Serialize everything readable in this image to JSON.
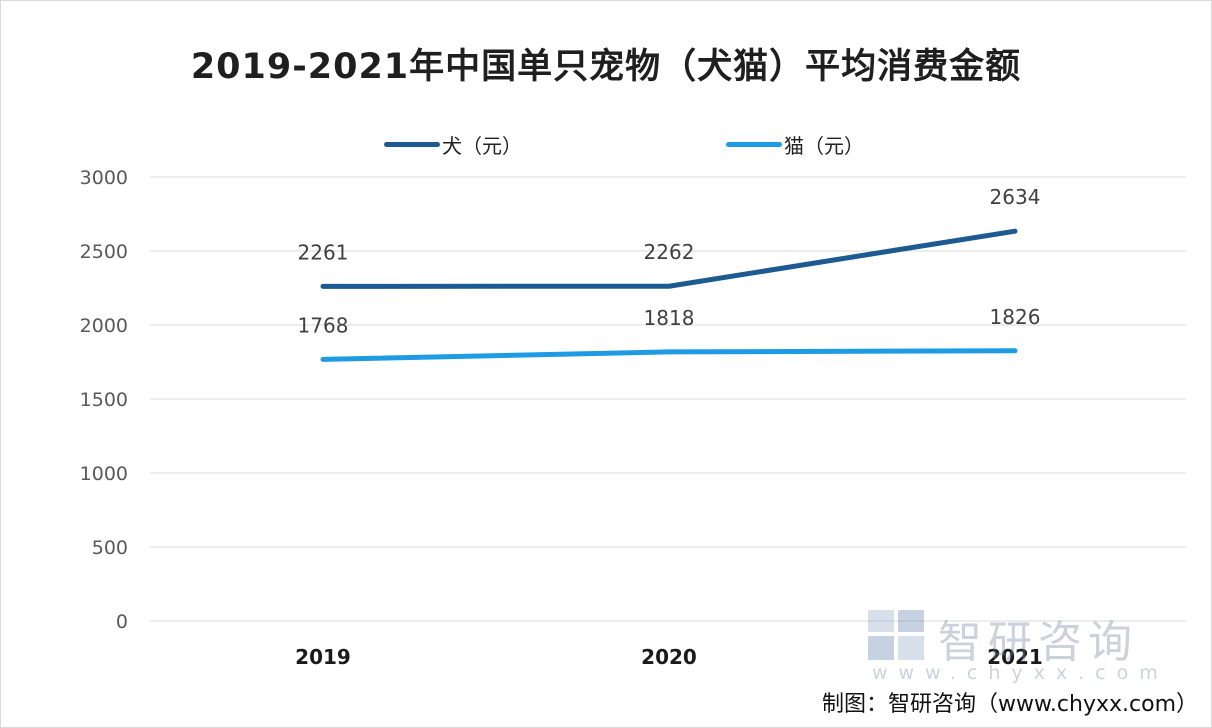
{
  "chart_data": {
    "type": "line",
    "title": "2019-2021年中国单只宠物（犬猫）平均消费金额",
    "x": [
      "2019",
      "2020",
      "2021"
    ],
    "series": [
      {
        "name": "犬（元）",
        "values": [
          2261,
          2262,
          2634
        ],
        "color": "#1d5a92"
      },
      {
        "name": "猫（元）",
        "values": [
          1768,
          1818,
          1826
        ],
        "color": "#1e9be3"
      }
    ],
    "ylim": [
      0,
      3000
    ],
    "yticks": [
      0,
      500,
      1000,
      1500,
      2000,
      2500,
      3000
    ],
    "grid": true,
    "legend": "top"
  },
  "watermark": {
    "name": "智研咨询",
    "url": "www.chyxx.com"
  },
  "source": "制图：智研咨询（www.chyxx.com）"
}
